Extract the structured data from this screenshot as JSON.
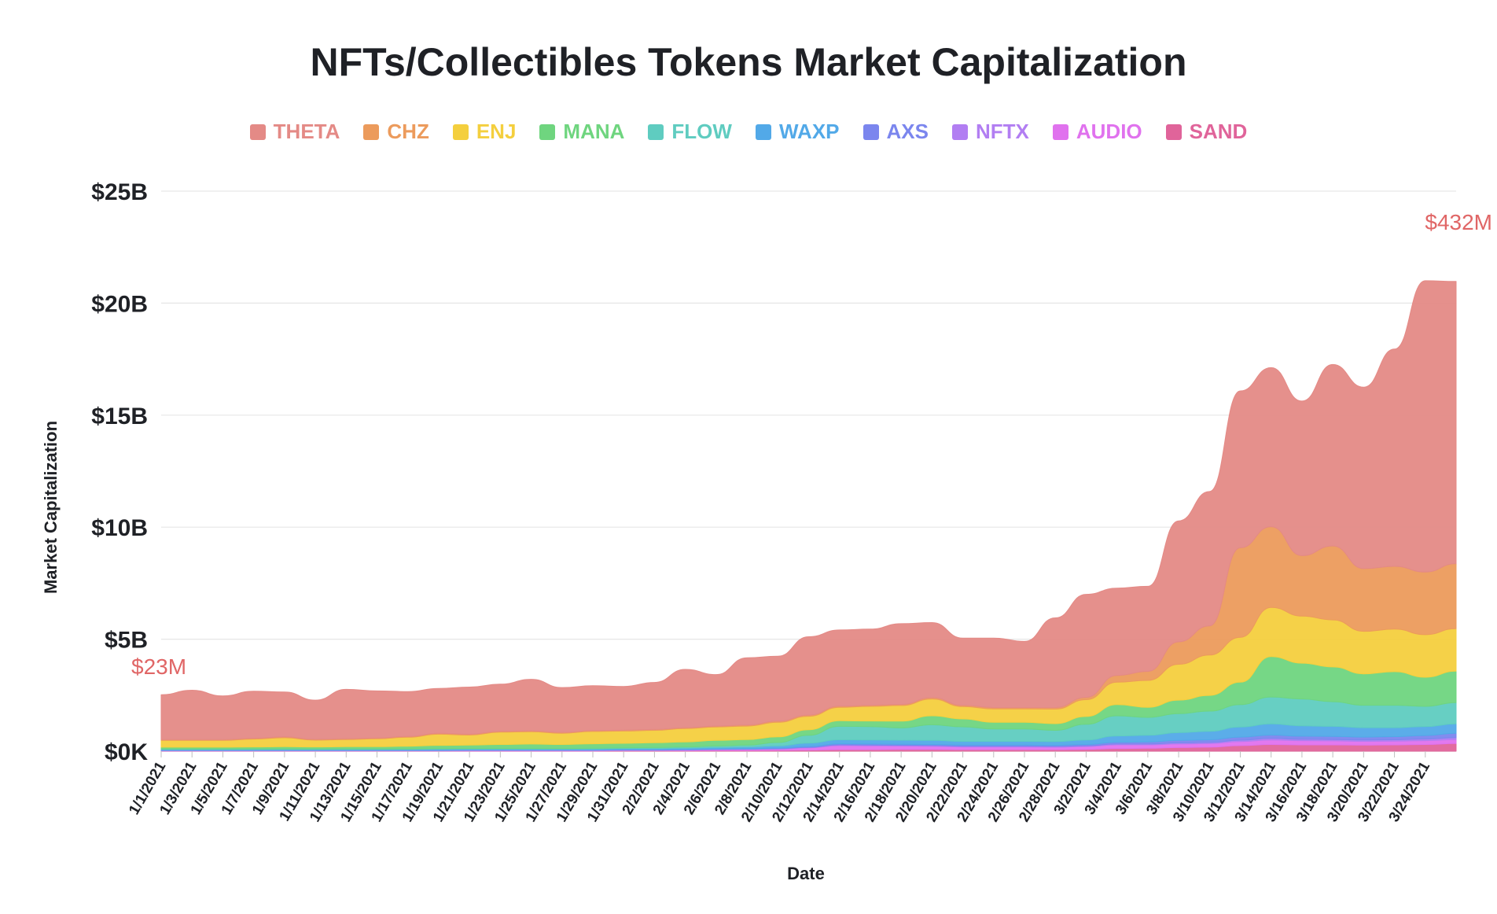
{
  "chart_data": {
    "type": "area",
    "title": "NFTs/Collectibles Tokens Market Capitalization",
    "xlabel": "Date",
    "ylabel": "Market Capitalization",
    "ylim": [
      0,
      25000000000
    ],
    "yticks": [
      "$0K",
      "$5B",
      "$10B",
      "$15B",
      "$20B",
      "$25B"
    ],
    "grid": true,
    "legend_position": "top",
    "x_ticks": [
      "1/1/2021",
      "1/3/2021",
      "1/5/2021",
      "1/7/2021",
      "1/9/2021",
      "1/11/2021",
      "1/13/2021",
      "1/15/2021",
      "1/17/2021",
      "1/19/2021",
      "1/21/2021",
      "1/23/2021",
      "1/25/2021",
      "1/27/2021",
      "1/29/2021",
      "1/31/2021",
      "2/2/2021",
      "2/4/2021",
      "2/6/2021",
      "2/8/2021",
      "2/10/2021",
      "2/12/2021",
      "2/14/2021",
      "2/16/2021",
      "2/18/2021",
      "2/20/2021",
      "2/22/2021",
      "2/24/2021",
      "2/26/2021",
      "2/28/2021",
      "3/2/2021",
      "3/4/2021",
      "3/6/2021",
      "3/8/2021",
      "3/10/2021",
      "3/12/2021",
      "3/14/2021",
      "3/16/2021",
      "3/18/2021",
      "3/20/2021",
      "3/22/2021",
      "3/24/2021"
    ],
    "x": [
      "1/1/2021",
      "1/3/2021",
      "1/5/2021",
      "1/7/2021",
      "1/9/2021",
      "1/11/2021",
      "1/13/2021",
      "1/15/2021",
      "1/17/2021",
      "1/19/2021",
      "1/21/2021",
      "1/23/2021",
      "1/25/2021",
      "1/27/2021",
      "1/29/2021",
      "1/31/2021",
      "2/2/2021",
      "2/4/2021",
      "2/6/2021",
      "2/8/2021",
      "2/10/2021",
      "2/12/2021",
      "2/14/2021",
      "2/16/2021",
      "2/18/2021",
      "2/20/2021",
      "2/22/2021",
      "2/24/2021",
      "2/26/2021",
      "2/28/2021",
      "3/2/2021",
      "3/4/2021",
      "3/6/2021",
      "3/8/2021",
      "3/10/2021",
      "3/12/2021",
      "3/14/2021",
      "3/16/2021",
      "3/18/2021",
      "3/20/2021",
      "3/22/2021",
      "3/24/2021",
      "3/26/2021"
    ],
    "series": [
      {
        "name": "SAND",
        "color": "#e0649a",
        "values": [
          0.01,
          0.01,
          0.01,
          0.01,
          0.01,
          0.01,
          0.01,
          0.01,
          0.01,
          0.01,
          0.01,
          0.01,
          0.01,
          0.01,
          0.01,
          0.02,
          0.02,
          0.02,
          0.03,
          0.03,
          0.04,
          0.05,
          0.07,
          0.07,
          0.08,
          0.08,
          0.07,
          0.07,
          0.07,
          0.07,
          0.08,
          0.12,
          0.13,
          0.16,
          0.18,
          0.25,
          0.3,
          0.28,
          0.28,
          0.27,
          0.28,
          0.3,
          0.34
        ]
      },
      {
        "name": "AUDIO",
        "color": "#e072ee",
        "values": [
          0.01,
          0.01,
          0.01,
          0.01,
          0.01,
          0.01,
          0.01,
          0.01,
          0.01,
          0.01,
          0.02,
          0.02,
          0.02,
          0.02,
          0.02,
          0.02,
          0.02,
          0.03,
          0.04,
          0.05,
          0.06,
          0.1,
          0.18,
          0.17,
          0.15,
          0.14,
          0.12,
          0.12,
          0.12,
          0.11,
          0.13,
          0.16,
          0.15,
          0.16,
          0.16,
          0.18,
          0.2,
          0.19,
          0.18,
          0.17,
          0.17,
          0.17,
          0.18
        ]
      },
      {
        "name": "NFTX",
        "color": "#b27ef2",
        "values": [
          0.01,
          0.01,
          0.01,
          0.01,
          0.01,
          0.01,
          0.01,
          0.01,
          0.01,
          0.01,
          0.01,
          0.01,
          0.01,
          0.01,
          0.01,
          0.01,
          0.01,
          0.01,
          0.01,
          0.01,
          0.01,
          0.02,
          0.03,
          0.03,
          0.03,
          0.03,
          0.03,
          0.03,
          0.03,
          0.03,
          0.03,
          0.04,
          0.04,
          0.05,
          0.05,
          0.06,
          0.07,
          0.06,
          0.06,
          0.06,
          0.06,
          0.07,
          0.08
        ]
      },
      {
        "name": "AXS",
        "color": "#7b86ee",
        "values": [
          0.01,
          0.01,
          0.01,
          0.01,
          0.01,
          0.01,
          0.01,
          0.01,
          0.01,
          0.01,
          0.01,
          0.01,
          0.01,
          0.01,
          0.01,
          0.02,
          0.02,
          0.02,
          0.02,
          0.02,
          0.03,
          0.04,
          0.05,
          0.05,
          0.05,
          0.05,
          0.05,
          0.05,
          0.05,
          0.05,
          0.06,
          0.08,
          0.09,
          0.11,
          0.12,
          0.14,
          0.15,
          0.14,
          0.14,
          0.13,
          0.14,
          0.16,
          0.2
        ]
      },
      {
        "name": "WAXP",
        "color": "#52a9e8",
        "values": [
          0.04,
          0.04,
          0.04,
          0.04,
          0.04,
          0.04,
          0.04,
          0.04,
          0.04,
          0.05,
          0.05,
          0.05,
          0.05,
          0.05,
          0.05,
          0.05,
          0.05,
          0.06,
          0.07,
          0.08,
          0.1,
          0.15,
          0.18,
          0.18,
          0.18,
          0.18,
          0.17,
          0.17,
          0.17,
          0.17,
          0.2,
          0.28,
          0.3,
          0.35,
          0.38,
          0.45,
          0.5,
          0.46,
          0.45,
          0.42,
          0.4,
          0.4,
          0.42
        ]
      },
      {
        "name": "FLOW",
        "color": "#5fccc0",
        "values": [
          0.02,
          0.02,
          0.02,
          0.02,
          0.02,
          0.02,
          0.02,
          0.02,
          0.02,
          0.02,
          0.02,
          0.02,
          0.02,
          0.02,
          0.03,
          0.03,
          0.04,
          0.05,
          0.06,
          0.08,
          0.15,
          0.35,
          0.6,
          0.6,
          0.55,
          0.7,
          0.65,
          0.55,
          0.55,
          0.5,
          0.7,
          0.9,
          0.8,
          0.85,
          0.9,
          1.0,
          1.2,
          1.2,
          1.1,
          1.0,
          1.0,
          0.9,
          0.95
        ]
      },
      {
        "name": "MANA",
        "color": "#6fd57f",
        "values": [
          0.08,
          0.08,
          0.08,
          0.09,
          0.1,
          0.09,
          0.1,
          0.1,
          0.12,
          0.15,
          0.15,
          0.18,
          0.2,
          0.18,
          0.2,
          0.2,
          0.22,
          0.22,
          0.25,
          0.25,
          0.25,
          0.25,
          0.25,
          0.25,
          0.3,
          0.4,
          0.35,
          0.3,
          0.3,
          0.3,
          0.35,
          0.5,
          0.45,
          0.6,
          0.7,
          1.0,
          1.8,
          1.6,
          1.55,
          1.4,
          1.5,
          1.3,
          1.4
        ]
      },
      {
        "name": "ENJ",
        "color": "#f4cf3e",
        "values": [
          0.3,
          0.3,
          0.3,
          0.35,
          0.4,
          0.3,
          0.32,
          0.35,
          0.4,
          0.5,
          0.45,
          0.55,
          0.55,
          0.5,
          0.55,
          0.55,
          0.55,
          0.6,
          0.6,
          0.6,
          0.65,
          0.6,
          0.6,
          0.65,
          0.7,
          0.75,
          0.55,
          0.6,
          0.6,
          0.65,
          0.75,
          1.0,
          1.2,
          1.6,
          1.8,
          2.0,
          2.2,
          2.1,
          2.1,
          1.9,
          1.9,
          1.9,
          1.9
        ]
      },
      {
        "name": "CHZ",
        "color": "#ec9b5c",
        "values": [
          0.04,
          0.04,
          0.04,
          0.04,
          0.04,
          0.04,
          0.04,
          0.04,
          0.04,
          0.04,
          0.04,
          0.04,
          0.04,
          0.04,
          0.04,
          0.04,
          0.04,
          0.04,
          0.04,
          0.05,
          0.05,
          0.05,
          0.05,
          0.05,
          0.05,
          0.06,
          0.06,
          0.06,
          0.06,
          0.07,
          0.1,
          0.3,
          0.4,
          1.0,
          1.3,
          4.0,
          3.6,
          2.7,
          3.3,
          2.8,
          2.8,
          2.8,
          2.9
        ]
      },
      {
        "name": "THETA",
        "color": "#e48a86",
        "values": [
          2.0,
          2.2,
          1.95,
          2.1,
          2.0,
          1.75,
          2.2,
          2.1,
          2.0,
          2.0,
          2.1,
          2.1,
          2.3,
          2.0,
          2.0,
          1.95,
          2.1,
          2.6,
          2.3,
          3.0,
          2.9,
          3.5,
          3.4,
          3.4,
          3.6,
          3.35,
          3.0,
          3.1,
          2.95,
          4.0,
          4.6,
          3.9,
          3.8,
          5.4,
          6.0,
          7.0,
          7.1,
          6.9,
          8.1,
          8.1,
          9.7,
          13.0,
          12.6
        ]
      }
    ],
    "values_unit": "$B",
    "annotations": [
      {
        "text": "$23M",
        "x": "1/1/2021",
        "color": "#e06666"
      },
      {
        "text": "$432M",
        "x": "3/26/2021",
        "color": "#e06666"
      }
    ]
  }
}
